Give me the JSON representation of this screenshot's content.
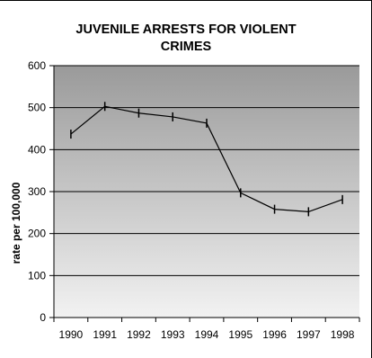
{
  "chart_data": {
    "type": "line",
    "title_lines": [
      "JUVENILE ARRESTS FOR VIOLENT",
      "CRIMES"
    ],
    "xlabel": "",
    "ylabel": "rate per 100,000",
    "categories": [
      "1990",
      "1991",
      "1992",
      "1993",
      "1994",
      "1995",
      "1996",
      "1997",
      "1998"
    ],
    "series": [
      {
        "values": [
          437,
          503,
          487,
          478,
          463,
          297,
          258,
          252,
          281
        ]
      }
    ],
    "ylim": [
      0,
      600
    ],
    "yticks": [
      "0",
      "100",
      "200",
      "300",
      "400",
      "500",
      "600"
    ],
    "grid": true,
    "legend": "none",
    "colors": {
      "plot_top": "#9a9a9a",
      "plot_bottom": "#f2f2f2",
      "line": "#000000",
      "grid": "#000000"
    }
  }
}
